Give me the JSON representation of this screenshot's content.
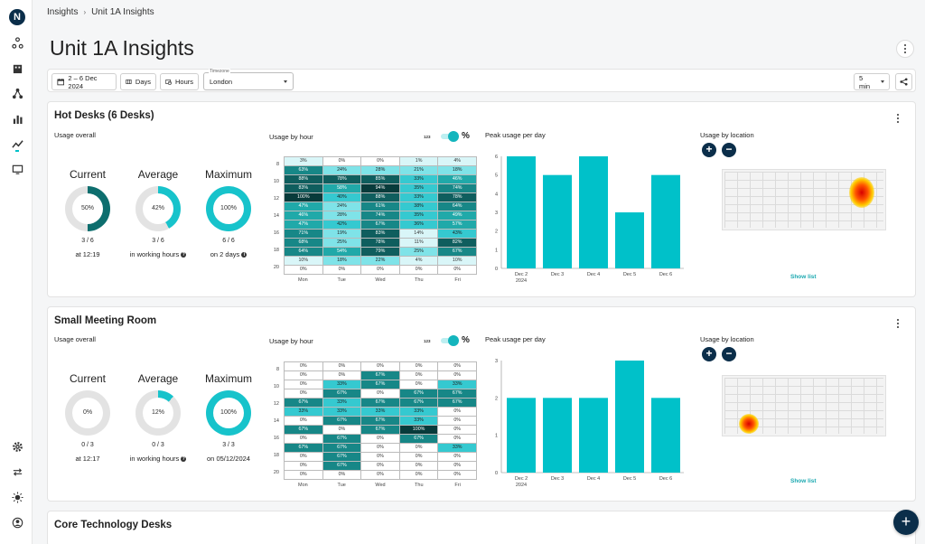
{
  "app": {
    "logo_letter": "N"
  },
  "breadcrumb": {
    "root": "Insights",
    "separator": "›",
    "current": "Unit 1A Insights"
  },
  "page_title": "Unit 1A Insights",
  "toolbar": {
    "date_range": "2 – 6 Dec 2024",
    "group_days": "Days",
    "group_hours": "Hours",
    "timezone_label": "Timezone",
    "timezone_value": "London",
    "interval": "5 min"
  },
  "colors": {
    "accent": "#00c1c9",
    "navy": "#0b2e4a",
    "ring_track": "#e3e3e3",
    "teal_dark": "#0d6e6e"
  },
  "cards": [
    {
      "title": "Hot Desks (6 Desks)",
      "usage_overall": "Usage overall",
      "stats": [
        {
          "heading": "Current",
          "pct_label": "50%",
          "fraction": 0.5,
          "ring_color": "#0d6e6e",
          "value": "3 / 6",
          "sub": "at 12:19",
          "info": false
        },
        {
          "heading": "Average",
          "pct_label": "42%",
          "fraction": 0.42,
          "ring_color": "#17c3cb",
          "value": "3 / 6",
          "sub": "in working hours",
          "info": true
        },
        {
          "heading": "Maximum",
          "pct_label": "100%",
          "fraction": 1.0,
          "ring_color": "#17c3cb",
          "value": "6 / 6",
          "sub": "on 2 days",
          "info": true
        }
      ],
      "usage_by_hour": "Usage by hour",
      "toggle_num": "123",
      "toggle_pct": "%",
      "hour_labels": [
        "8",
        "10",
        "12",
        "14",
        "16",
        "18",
        "20"
      ],
      "day_labels": [
        "Mon",
        "Tue",
        "Wed",
        "Thu",
        "Fri"
      ],
      "heatmap": [
        [
          "3%",
          "0%",
          "0%",
          "1%",
          "4%"
        ],
        [
          "63%",
          "24%",
          "28%",
          "21%",
          "18%"
        ],
        [
          "88%",
          "78%",
          "85%",
          "33%",
          "46%"
        ],
        [
          "83%",
          "58%",
          "94%",
          "35%",
          "74%"
        ],
        [
          "100%",
          "40%",
          "88%",
          "33%",
          "78%"
        ],
        [
          "47%",
          "24%",
          "61%",
          "38%",
          "64%"
        ],
        [
          "46%",
          "28%",
          "74%",
          "35%",
          "49%"
        ],
        [
          "47%",
          "42%",
          "67%",
          "36%",
          "57%"
        ],
        [
          "71%",
          "19%",
          "83%",
          "14%",
          "43%"
        ],
        [
          "68%",
          "25%",
          "78%",
          "11%",
          "82%"
        ],
        [
          "64%",
          "54%",
          "79%",
          "25%",
          "67%"
        ],
        [
          "10%",
          "18%",
          "22%",
          "4%",
          "10%"
        ],
        [
          "0%",
          "0%",
          "0%",
          "0%",
          "0%"
        ]
      ],
      "peak_title": "Peak usage per day",
      "chart_data": {
        "type": "bar",
        "categories": [
          "Dec 2 2024",
          "Dec 3",
          "Dec 4",
          "Dec 5",
          "Dec 6"
        ],
        "category_lines": [
          [
            "Dec 2",
            "2024"
          ],
          [
            "Dec 3"
          ],
          [
            "Dec 4"
          ],
          [
            "Dec 5"
          ],
          [
            "Dec 6"
          ]
        ],
        "values": [
          6,
          5,
          6,
          3,
          5
        ],
        "ylim": [
          0,
          6
        ],
        "yticks": [
          0,
          1,
          2,
          3,
          4,
          5,
          6
        ],
        "title": "Peak usage per day",
        "xlabel": "",
        "ylabel": ""
      },
      "location_title": "Usage by location",
      "zoom_in": "+",
      "zoom_out": "−",
      "show_list": "Show list"
    },
    {
      "title": "Small Meeting Room",
      "usage_overall": "Usage overall",
      "stats": [
        {
          "heading": "Current",
          "pct_label": "0%",
          "fraction": 0.0,
          "ring_color": "#0d6e6e",
          "value": "0 / 3",
          "sub": "at 12:17",
          "info": false
        },
        {
          "heading": "Average",
          "pct_label": "12%",
          "fraction": 0.12,
          "ring_color": "#17c3cb",
          "value": "0 / 3",
          "sub": "in working hours",
          "info": true
        },
        {
          "heading": "Maximum",
          "pct_label": "100%",
          "fraction": 1.0,
          "ring_color": "#17c3cb",
          "value": "3 / 3",
          "sub": "on 05/12/2024",
          "info": false
        }
      ],
      "usage_by_hour": "Usage by hour",
      "toggle_num": "123",
      "toggle_pct": "%",
      "hour_labels": [
        "8",
        "10",
        "12",
        "14",
        "16",
        "18",
        "20"
      ],
      "day_labels": [
        "Mon",
        "Tue",
        "Wed",
        "Thu",
        "Fri"
      ],
      "heatmap": [
        [
          "0%",
          "0%",
          "0%",
          "0%",
          "0%"
        ],
        [
          "0%",
          "0%",
          "67%",
          "0%",
          "0%"
        ],
        [
          "0%",
          "33%",
          "67%",
          "0%",
          "33%"
        ],
        [
          "0%",
          "67%",
          "0%",
          "67%",
          "67%"
        ],
        [
          "67%",
          "33%",
          "67%",
          "67%",
          "67%"
        ],
        [
          "33%",
          "33%",
          "33%",
          "33%",
          "0%"
        ],
        [
          "0%",
          "67%",
          "67%",
          "33%",
          "0%"
        ],
        [
          "67%",
          "0%",
          "67%",
          "100%",
          "0%"
        ],
        [
          "0%",
          "67%",
          "0%",
          "67%",
          "0%"
        ],
        [
          "67%",
          "67%",
          "0%",
          "0%",
          "33%"
        ],
        [
          "0%",
          "67%",
          "0%",
          "0%",
          "0%"
        ],
        [
          "0%",
          "67%",
          "0%",
          "0%",
          "0%"
        ],
        [
          "0%",
          "0%",
          "0%",
          "0%",
          "0%"
        ]
      ],
      "peak_title": "Peak usage per day",
      "chart_data": {
        "type": "bar",
        "categories": [
          "Dec 2 2024",
          "Dec 3",
          "Dec 4",
          "Dec 5",
          "Dec 6"
        ],
        "category_lines": [
          [
            "Dec 2",
            "2024"
          ],
          [
            "Dec 3"
          ],
          [
            "Dec 4"
          ],
          [
            "Dec 5"
          ],
          [
            "Dec 6"
          ]
        ],
        "values": [
          2,
          2,
          2,
          3,
          2
        ],
        "ylim": [
          0,
          3
        ],
        "yticks": [
          0,
          1,
          2,
          3
        ],
        "title": "Peak usage per day",
        "xlabel": "",
        "ylabel": ""
      },
      "location_title": "Usage by location",
      "zoom_in": "+",
      "zoom_out": "−",
      "show_list": "Show list"
    },
    {
      "title": "Core Technology Desks"
    }
  ],
  "fab": "+"
}
